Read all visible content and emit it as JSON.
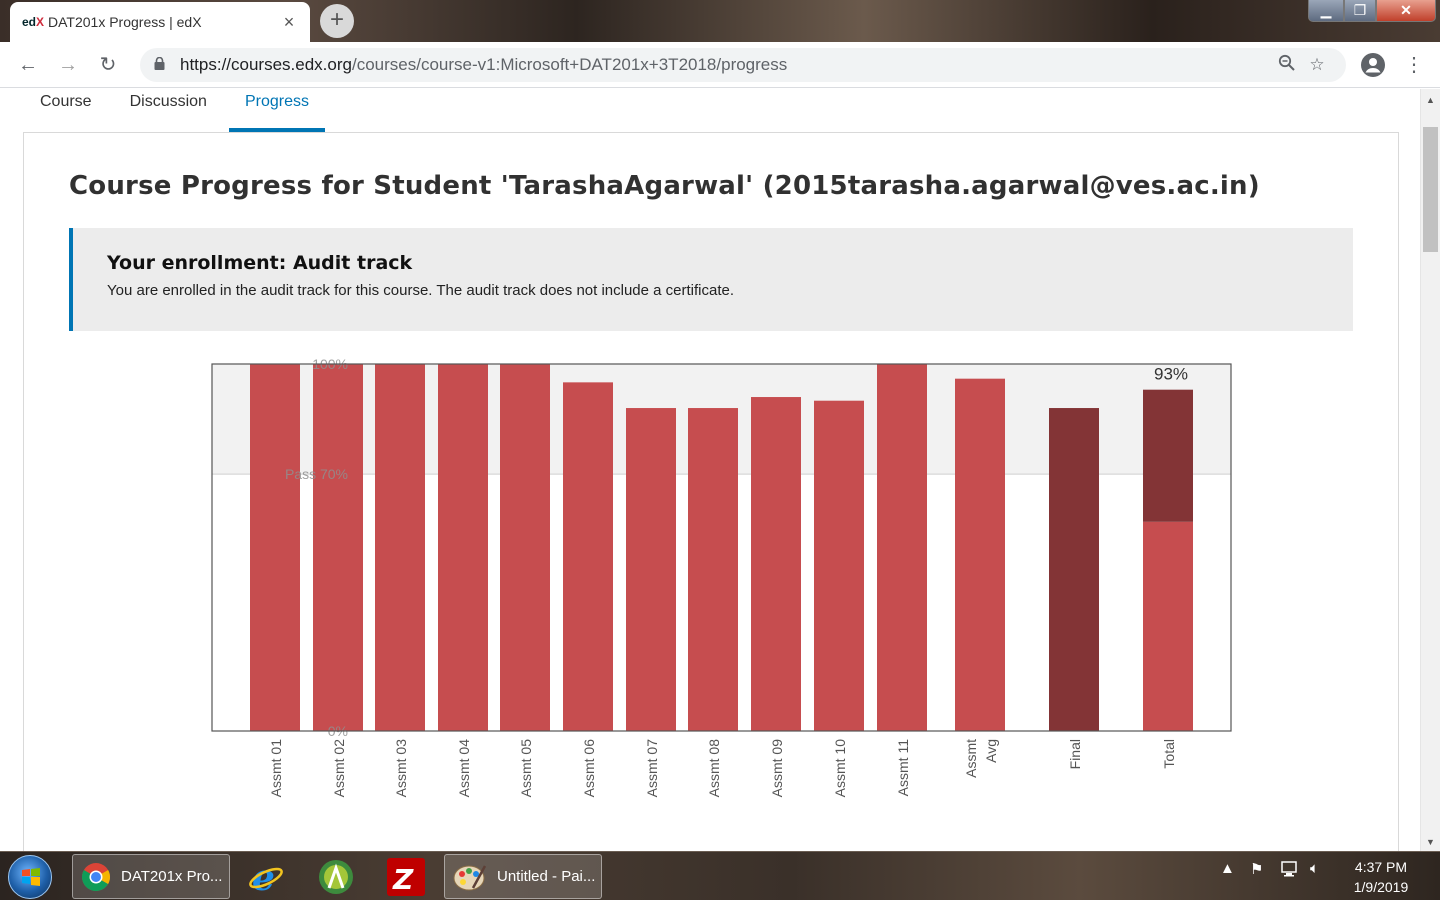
{
  "browser": {
    "tab_title": "DAT201x Progress | edX",
    "favicon_text": "edX",
    "url_host": "https://courses.edx.org",
    "url_path": "/courses/course-v1:Microsoft+DAT201x+3T2018/progress"
  },
  "course_nav": {
    "tabs": [
      {
        "label": "Course",
        "active": false
      },
      {
        "label": "Discussion",
        "active": false
      },
      {
        "label": "Progress",
        "active": true
      }
    ]
  },
  "page": {
    "title": "Course Progress for Student 'TarashaAgarwal' (2015tarasha.agarwal@ves.ac.in)",
    "enrollment_heading": "Your enrollment: Audit track",
    "enrollment_text": "You are enrolled in the audit track for this course. The audit track does not include a certificate."
  },
  "chart_data": {
    "type": "bar",
    "categories": [
      "Assmt 01",
      "Assmt 02",
      "Assmt 03",
      "Assmt 04",
      "Assmt 05",
      "Assmt 06",
      "Assmt 07",
      "Assmt 08",
      "Assmt 09",
      "Assmt 10",
      "Assmt 11",
      "Assmt Avg",
      "Final",
      "Total"
    ],
    "values": [
      100,
      100,
      100,
      100,
      100,
      95,
      88,
      88,
      91,
      90,
      100,
      96,
      88,
      93
    ],
    "total_breakdown": {
      "assessments_part": 57,
      "final_part": 36
    },
    "total_label": "93%",
    "y_tick_labels": [
      "100%",
      "Pass 70%",
      "0%"
    ],
    "pass_threshold": 70,
    "ylim": [
      0,
      100
    ],
    "colors": {
      "assessment": "#c64d4f",
      "final": "#833436",
      "pass_band": "#f2f2f2",
      "frame": "#555555"
    }
  },
  "taskbar": {
    "items": [
      {
        "label": "DAT201x Pro...",
        "icon": "chrome-icon"
      },
      {
        "label": "Untitled - Pai...",
        "icon": "paint-icon"
      }
    ],
    "pinned": [
      "internet-explorer-icon",
      "android-studio-icon",
      "filezilla-icon"
    ],
    "clock_time": "4:37 PM",
    "clock_date": "1/9/2019"
  }
}
